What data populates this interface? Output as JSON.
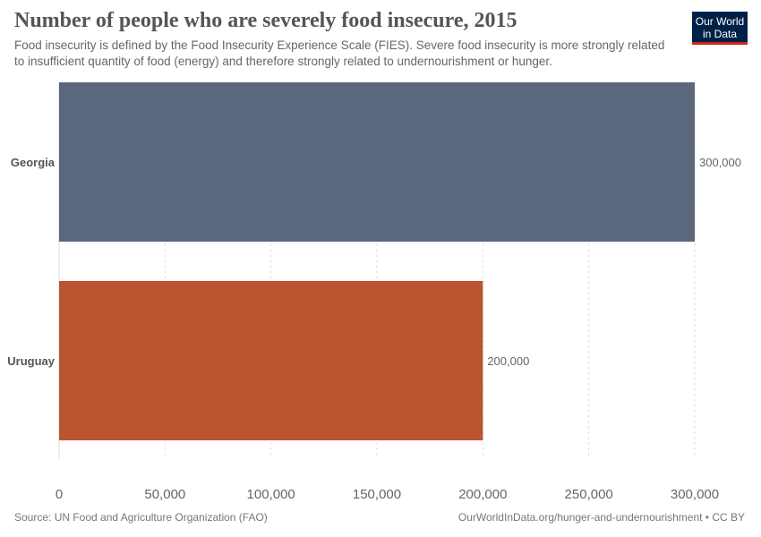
{
  "header": {
    "title": "Number of people who are severely food insecure, 2015",
    "subtitle": "Food insecurity is defined by the Food Insecurity Experience Scale (FIES). Severe food insecurity is more strongly related to insufficient quantity of food (energy) and therefore strongly related to undernourishment or hunger."
  },
  "logo": {
    "line1": "Our World",
    "line2": "in Data"
  },
  "footer": {
    "source": "Source: UN Food and Agriculture Organization (FAO)",
    "url": "OurWorldInData.org/hunger-and-undernourishment • CC BY"
  },
  "chart_data": {
    "type": "bar",
    "orientation": "horizontal",
    "title": "Number of people who are severely food insecure, 2015",
    "categories": [
      "Georgia",
      "Uruguay"
    ],
    "values": [
      300000,
      200000
    ],
    "value_labels": [
      "300,000",
      "200,000"
    ],
    "colors": [
      "#5a677d",
      "#bb5430"
    ],
    "xlim": [
      0,
      300000
    ],
    "xticks": [
      0,
      50000,
      100000,
      150000,
      200000,
      250000,
      300000
    ],
    "xtick_labels": [
      "0",
      "50,000",
      "100,000",
      "150,000",
      "200,000",
      "250,000",
      "300,000"
    ],
    "grid": "vertical-dashed",
    "xlabel": "",
    "ylabel": ""
  }
}
